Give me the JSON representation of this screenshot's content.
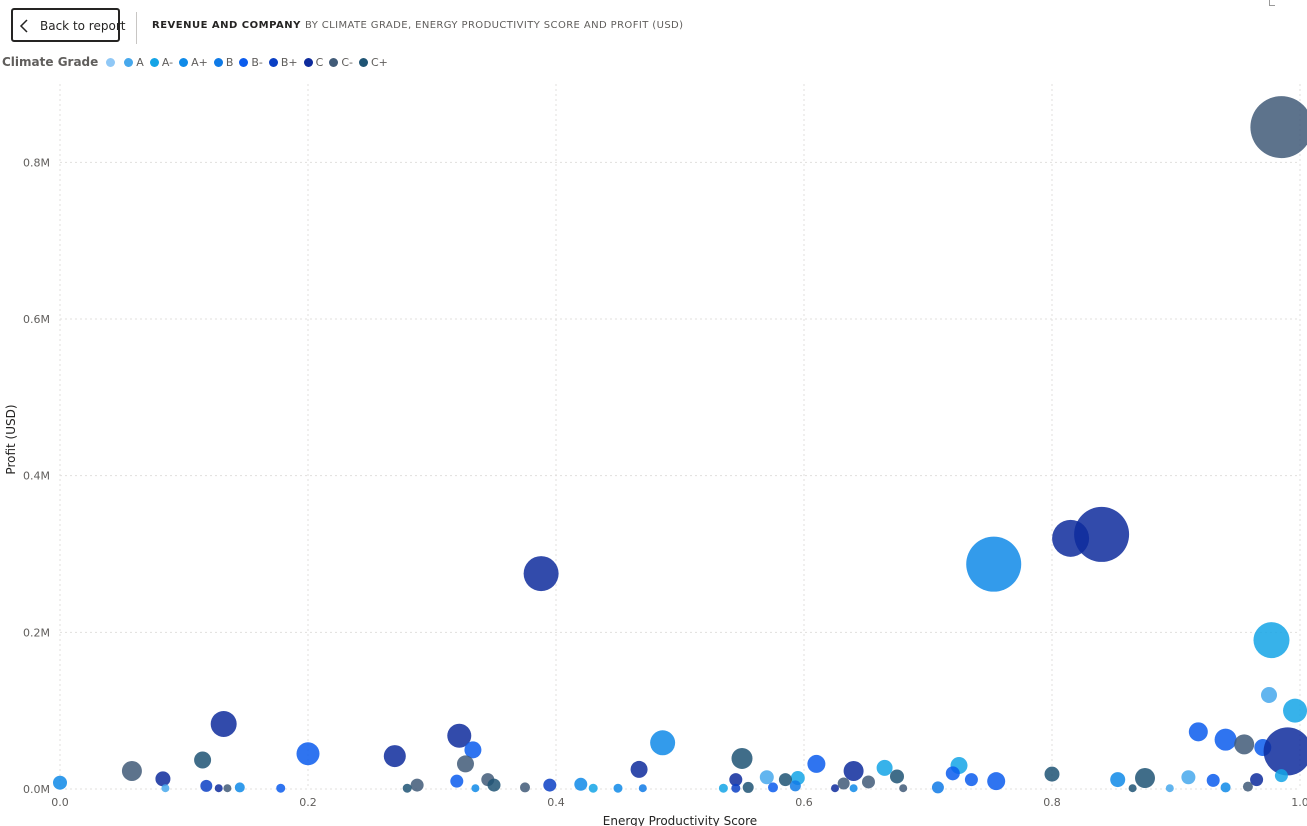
{
  "header": {
    "back_label": "Back to report",
    "title": "REVENUE AND COMPANY",
    "subtitle": "BY CLIMATE GRADE, ENERGY PRODUCTIVITY SCORE AND PROFIT (USD)"
  },
  "legend": {
    "title": "Climate Grade",
    "items": [
      {
        "label": "",
        "color": "#90c8f6"
      },
      {
        "label": "A",
        "color": "#47a8ec"
      },
      {
        "label": "A-",
        "color": "#14a4e6"
      },
      {
        "label": "A+",
        "color": "#0f8ae8"
      },
      {
        "label": "B",
        "color": "#0f7ae6"
      },
      {
        "label": "B-",
        "color": "#0b5ced"
      },
      {
        "label": "B+",
        "color": "#0a3fc4"
      },
      {
        "label": "C",
        "color": "#0e2b9c"
      },
      {
        "label": "C-",
        "color": "#415b78"
      },
      {
        "label": "C+",
        "color": "#1f5474"
      }
    ]
  },
  "chart_data": {
    "type": "scatter",
    "xlabel": "Energy Productivity Score",
    "ylabel": "Profit (USD)",
    "xlim": [
      0,
      1.0
    ],
    "ylim": [
      0,
      900000
    ],
    "x_ticks": [
      0,
      0.2,
      0.4,
      0.6,
      0.8,
      1.0
    ],
    "x_tick_labels": [
      "0.0",
      "0.2",
      "0.4",
      "0.6",
      "0.8",
      "1.0"
    ],
    "y_ticks": [
      0,
      200000,
      400000,
      600000,
      800000
    ],
    "y_tick_labels": [
      "0.0M",
      "0.2M",
      "0.4M",
      "0.6M",
      "0.8M"
    ],
    "grid": true,
    "legend_position": "top-left",
    "points": [
      {
        "x": 0.985,
        "y": 845000,
        "size": 62,
        "grade": "C-"
      },
      {
        "x": 0.84,
        "y": 325000,
        "size": 55,
        "grade": "C"
      },
      {
        "x": 0.815,
        "y": 320000,
        "size": 37,
        "grade": "C"
      },
      {
        "x": 0.753,
        "y": 287000,
        "size": 55,
        "grade": "A+"
      },
      {
        "x": 0.388,
        "y": 275000,
        "size": 35,
        "grade": "C"
      },
      {
        "x": 0.977,
        "y": 190000,
        "size": 36,
        "grade": "A-"
      },
      {
        "x": 0.975,
        "y": 120000,
        "size": 16,
        "grade": "A"
      },
      {
        "x": 0.996,
        "y": 100000,
        "size": 24,
        "grade": "A-"
      },
      {
        "x": 0.132,
        "y": 83000,
        "size": 26,
        "grade": "C"
      },
      {
        "x": 0.918,
        "y": 73000,
        "size": 19,
        "grade": "B-"
      },
      {
        "x": 0.322,
        "y": 68000,
        "size": 24,
        "grade": "C"
      },
      {
        "x": 0.94,
        "y": 63000,
        "size": 22,
        "grade": "B-"
      },
      {
        "x": 0.486,
        "y": 59000,
        "size": 25,
        "grade": "A+"
      },
      {
        "x": 0.955,
        "y": 57000,
        "size": 20,
        "grade": "C-"
      },
      {
        "x": 0.97,
        "y": 53000,
        "size": 17,
        "grade": "B-"
      },
      {
        "x": 0.99,
        "y": 48000,
        "size": 48,
        "grade": "C"
      },
      {
        "x": 0.333,
        "y": 50000,
        "size": 17,
        "grade": "B-"
      },
      {
        "x": 0.2,
        "y": 45000,
        "size": 23,
        "grade": "B-"
      },
      {
        "x": 0.27,
        "y": 42000,
        "size": 22,
        "grade": "C"
      },
      {
        "x": 0.55,
        "y": 39000,
        "size": 21,
        "grade": "C+"
      },
      {
        "x": 0.115,
        "y": 37000,
        "size": 17,
        "grade": "C+"
      },
      {
        "x": 0.327,
        "y": 32000,
        "size": 17,
        "grade": "C-"
      },
      {
        "x": 0.61,
        "y": 32000,
        "size": 18,
        "grade": "B-"
      },
      {
        "x": 0.725,
        "y": 30000,
        "size": 17,
        "grade": "A-"
      },
      {
        "x": 0.665,
        "y": 27000,
        "size": 16,
        "grade": "A-"
      },
      {
        "x": 0.467,
        "y": 25000,
        "size": 17,
        "grade": "C"
      },
      {
        "x": 0.058,
        "y": 23000,
        "size": 20,
        "grade": "C-"
      },
      {
        "x": 0.64,
        "y": 23000,
        "size": 20,
        "grade": "C"
      },
      {
        "x": 0.72,
        "y": 20000,
        "size": 14,
        "grade": "B-"
      },
      {
        "x": 0.8,
        "y": 19000,
        "size": 15,
        "grade": "C+"
      },
      {
        "x": 0.875,
        "y": 14000,
        "size": 20,
        "grade": "C+"
      },
      {
        "x": 0.57,
        "y": 15000,
        "size": 14,
        "grade": "A"
      },
      {
        "x": 0.595,
        "y": 14000,
        "size": 14,
        "grade": "A-"
      },
      {
        "x": 0.675,
        "y": 16000,
        "size": 14,
        "grade": "C+"
      },
      {
        "x": 0.083,
        "y": 13000,
        "size": 15,
        "grade": "C"
      },
      {
        "x": 0.91,
        "y": 15000,
        "size": 14,
        "grade": "A"
      },
      {
        "x": 0.985,
        "y": 17000,
        "size": 13,
        "grade": "A-"
      },
      {
        "x": 0.755,
        "y": 10000,
        "size": 18,
        "grade": "B-"
      },
      {
        "x": 0.853,
        "y": 12000,
        "size": 15,
        "grade": "A+"
      },
      {
        "x": 0.735,
        "y": 12000,
        "size": 13,
        "grade": "B-"
      },
      {
        "x": 0.545,
        "y": 12000,
        "size": 13,
        "grade": "C"
      },
      {
        "x": 0.585,
        "y": 12000,
        "size": 13,
        "grade": "C+"
      },
      {
        "x": 0.345,
        "y": 12000,
        "size": 13,
        "grade": "C-"
      },
      {
        "x": 0.32,
        "y": 10000,
        "size": 13,
        "grade": "B-"
      },
      {
        "x": 0.93,
        "y": 11000,
        "size": 13,
        "grade": "B-"
      },
      {
        "x": 0.965,
        "y": 12000,
        "size": 13,
        "grade": "C"
      },
      {
        "x": 0.652,
        "y": 9000,
        "size": 13,
        "grade": "C-"
      },
      {
        "x": 0.632,
        "y": 7000,
        "size": 12,
        "grade": "C-"
      },
      {
        "x": 0.42,
        "y": 6000,
        "size": 13,
        "grade": "A+"
      },
      {
        "x": 0.395,
        "y": 5000,
        "size": 13,
        "grade": "B+"
      },
      {
        "x": 0.288,
        "y": 5000,
        "size": 13,
        "grade": "C-"
      },
      {
        "x": 0.35,
        "y": 5000,
        "size": 13,
        "grade": "C+"
      },
      {
        "x": 0.0,
        "y": 8000,
        "size": 14,
        "grade": "A+"
      },
      {
        "x": 0.145,
        "y": 2000,
        "size": 10,
        "grade": "A+"
      },
      {
        "x": 0.118,
        "y": 4000,
        "size": 12,
        "grade": "B+"
      },
      {
        "x": 0.555,
        "y": 2000,
        "size": 11,
        "grade": "C+"
      },
      {
        "x": 0.593,
        "y": 4000,
        "size": 11,
        "grade": "B"
      },
      {
        "x": 0.575,
        "y": 2000,
        "size": 10,
        "grade": "B-"
      },
      {
        "x": 0.708,
        "y": 2000,
        "size": 12,
        "grade": "B"
      },
      {
        "x": 0.94,
        "y": 2000,
        "size": 10,
        "grade": "A+"
      },
      {
        "x": 0.958,
        "y": 3000,
        "size": 10,
        "grade": "C-"
      },
      {
        "x": 0.375,
        "y": 2000,
        "size": 10,
        "grade": "C-"
      },
      {
        "x": 0.45,
        "y": 1000,
        "size": 9,
        "grade": "A+"
      },
      {
        "x": 0.43,
        "y": 1000,
        "size": 9,
        "grade": "A-"
      },
      {
        "x": 0.47,
        "y": 1000,
        "size": 8,
        "grade": "B"
      },
      {
        "x": 0.178,
        "y": 1000,
        "size": 9,
        "grade": "B-"
      },
      {
        "x": 0.135,
        "y": 1000,
        "size": 8,
        "grade": "C-"
      },
      {
        "x": 0.128,
        "y": 1000,
        "size": 8,
        "grade": "C"
      },
      {
        "x": 0.28,
        "y": 1000,
        "size": 9,
        "grade": "C+"
      },
      {
        "x": 0.535,
        "y": 1000,
        "size": 9,
        "grade": "A-"
      },
      {
        "x": 0.545,
        "y": 1000,
        "size": 9,
        "grade": "B+"
      },
      {
        "x": 0.625,
        "y": 1000,
        "size": 8,
        "grade": "C"
      },
      {
        "x": 0.64,
        "y": 1000,
        "size": 8,
        "grade": "A+"
      },
      {
        "x": 0.68,
        "y": 1000,
        "size": 8,
        "grade": "C-"
      },
      {
        "x": 0.865,
        "y": 1000,
        "size": 8,
        "grade": "C+"
      },
      {
        "x": 0.895,
        "y": 1000,
        "size": 8,
        "grade": "A"
      },
      {
        "x": 0.335,
        "y": 1000,
        "size": 8,
        "grade": "A+"
      },
      {
        "x": 0.085,
        "y": 1000,
        "size": 8,
        "grade": "A"
      }
    ]
  }
}
